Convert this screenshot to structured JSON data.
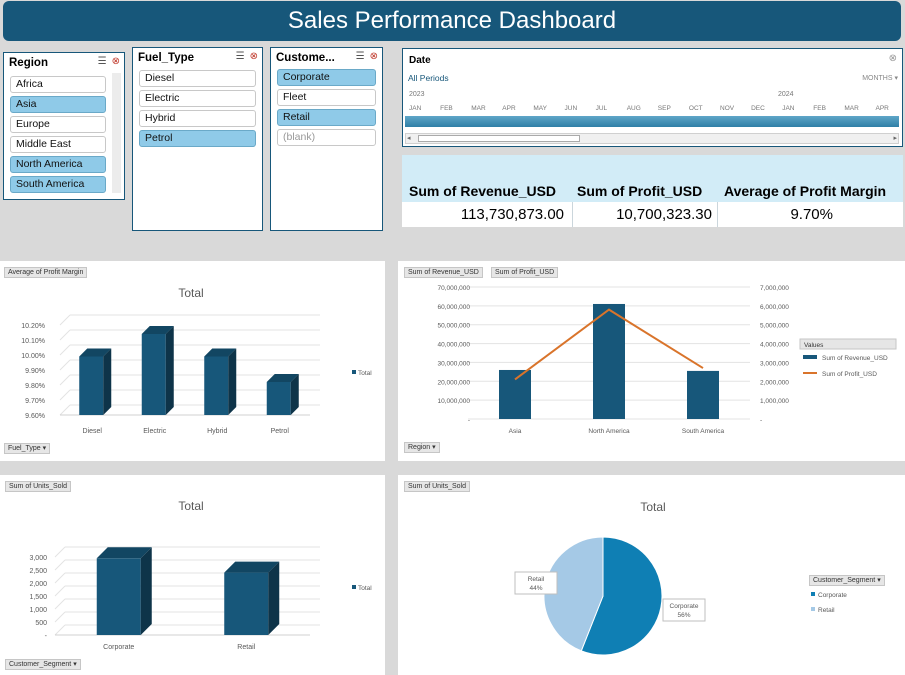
{
  "dashboard": {
    "title": "Sales Performance Dashboard"
  },
  "slicers": {
    "region": {
      "title": "Region",
      "items": [
        {
          "label": "Africa",
          "selected": false
        },
        {
          "label": "Asia",
          "selected": true
        },
        {
          "label": "Europe",
          "selected": false
        },
        {
          "label": "Middle East",
          "selected": false
        },
        {
          "label": "North America",
          "selected": true
        },
        {
          "label": "South America",
          "selected": true
        }
      ]
    },
    "fuel_type": {
      "title": "Fuel_Type",
      "items": [
        {
          "label": "Diesel",
          "selected": false
        },
        {
          "label": "Electric",
          "selected": false
        },
        {
          "label": "Hybrid",
          "selected": false
        },
        {
          "label": "Petrol",
          "selected": true
        }
      ]
    },
    "customer_segment": {
      "title": "Custome...",
      "items": [
        {
          "label": "Corporate",
          "selected": true
        },
        {
          "label": "Fleet",
          "selected": false
        },
        {
          "label": "Retail",
          "selected": true
        },
        {
          "label": "(blank)",
          "selected": false
        }
      ]
    }
  },
  "timeline": {
    "title": "Date",
    "periods": "All Periods",
    "level": "MONTHS",
    "year_2023": "2023",
    "year_2024": "2024",
    "months": [
      "JAN",
      "FEB",
      "MAR",
      "APR",
      "MAY",
      "JUN",
      "JUL",
      "AUG",
      "SEP",
      "OCT",
      "NOV",
      "DEC",
      "JAN",
      "FEB",
      "MAR",
      "APR"
    ]
  },
  "kpis": {
    "revenue_label": "Sum of Revenue_USD",
    "revenue_value": "113,730,873.00",
    "profit_label": "Sum of Profit_USD",
    "profit_value": "10,700,323.30",
    "margin_label": "Average of Profit Margin",
    "margin_value": "9.70%"
  },
  "chart_data": [
    {
      "type": "bar",
      "field_buttons": [
        "Average of Profit Margin",
        "Fuel_Type"
      ],
      "title": "Total",
      "categories": [
        "Diesel",
        "Electric",
        "Hybrid",
        "Petrol"
      ],
      "series": [
        {
          "name": "Total",
          "values": [
            9.99,
            10.14,
            9.99,
            9.82
          ]
        }
      ],
      "yticks": [
        "9.60%",
        "9.70%",
        "9.80%",
        "9.90%",
        "10.00%",
        "10.10%",
        "10.20%"
      ],
      "ylim": [
        9.6,
        10.2
      ]
    },
    {
      "type": "bar",
      "field_buttons": [
        "Sum of Revenue_USD",
        "Sum of Profit_USD",
        "Region"
      ],
      "categories": [
        "Asia",
        "North America",
        "South America"
      ],
      "series": [
        {
          "name": "Sum of Revenue_USD",
          "values": [
            26000000,
            61000000,
            25500000
          ],
          "axis": "left"
        },
        {
          "name": "Sum of Profit_USD",
          "values": [
            2100000,
            5800000,
            2700000
          ],
          "axis": "right",
          "type": "line"
        }
      ],
      "legend_title": "Values",
      "yticks_left": [
        "-",
        "10,000,000",
        "20,000,000",
        "30,000,000",
        "40,000,000",
        "50,000,000",
        "60,000,000",
        "70,000,000"
      ],
      "yticks_right": [
        "-",
        "1,000,000",
        "2,000,000",
        "3,000,000",
        "4,000,000",
        "5,000,000",
        "6,000,000",
        "7,000,000"
      ],
      "ylim_left": [
        0,
        70000000
      ],
      "ylim_right": [
        0,
        7000000
      ]
    },
    {
      "type": "bar",
      "field_buttons": [
        "Sum of Units_Sold",
        "Customer_Segment"
      ],
      "title": "Total",
      "categories": [
        "Corporate",
        "Retail"
      ],
      "series": [
        {
          "name": "Total",
          "values": [
            2950,
            2400
          ]
        }
      ],
      "yticks": [
        "-",
        "500",
        "1,000",
        "1,500",
        "2,000",
        "2,500",
        "3,000"
      ],
      "ylim": [
        0,
        3000
      ]
    },
    {
      "type": "pie",
      "field_buttons": [
        "Sum of Units_Sold",
        "Customer_Segment"
      ],
      "title": "Total",
      "slices": [
        {
          "label": "Corporate",
          "value": 56,
          "pct": "56%",
          "color": "#0f7fb4"
        },
        {
          "label": "Retail",
          "value": 44,
          "pct": "44%",
          "color": "#a5c9e6"
        }
      ]
    }
  ],
  "colors": {
    "bar": "#17577a",
    "line": "#d9742b",
    "accent": "#17577a"
  }
}
